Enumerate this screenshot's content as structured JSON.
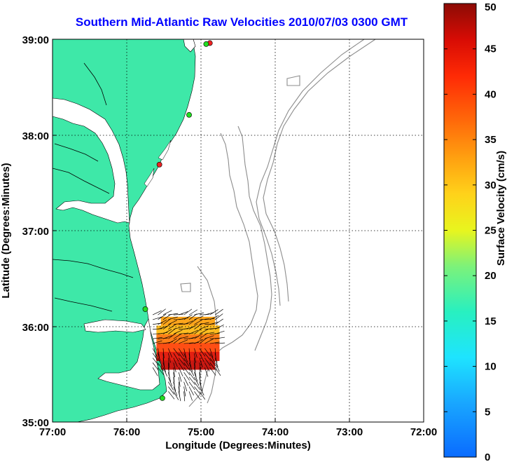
{
  "title": "Southern Mid-Atlantic Raw Velocities 2010/07/03 0300 GMT",
  "axes": {
    "xlabel": "Longitude (Degrees:Minutes)",
    "ylabel": "Latitude (Degrees:Minutes)",
    "xticks": [
      "77:00",
      "76:00",
      "75:00",
      "74:00",
      "73:00",
      "72:00"
    ],
    "yticks": [
      "39:00",
      "38:00",
      "37:00",
      "36:00",
      "35:00"
    ],
    "grid": true
  },
  "colorbar": {
    "label": "Surface Velocity (cm/s)",
    "ticks": [
      "50",
      "45",
      "40",
      "35",
      "30",
      "25",
      "20",
      "15",
      "10",
      "5",
      "0"
    ],
    "range": [
      0,
      50
    ]
  },
  "colors": {
    "land": "#3ee8a8",
    "title": "#0000ff",
    "bathymetry": "#8c8c8c",
    "station_green": "#22dd22",
    "station_red": "#ee2222"
  },
  "stations": [
    {
      "lon": -74.88,
      "lat": 38.96,
      "status": "red"
    },
    {
      "lon": -74.93,
      "lat": 38.95,
      "status": "green"
    },
    {
      "lon": -75.16,
      "lat": 38.21,
      "status": "green"
    },
    {
      "lon": -75.56,
      "lat": 37.69,
      "status": "red"
    },
    {
      "lon": -75.75,
      "lat": 36.18,
      "status": "green"
    },
    {
      "lon": -75.52,
      "lat": 35.25,
      "status": "green"
    }
  ],
  "chart_data": {
    "type": "heatmap",
    "xlim": [
      -77.0,
      -72.0
    ],
    "ylim": [
      35.0,
      39.0
    ],
    "color_range": [
      0,
      50
    ],
    "field_region": {
      "lon": [
        -75.6,
        -74.75
      ],
      "lat": [
        35.55,
        36.1
      ]
    },
    "speed_profile": [
      {
        "lat": 36.05,
        "speed": 33
      },
      {
        "lat": 35.95,
        "speed": 31
      },
      {
        "lat": 35.85,
        "speed": 36
      },
      {
        "lat": 35.75,
        "speed": 40
      },
      {
        "lat": 35.65,
        "speed": 45
      },
      {
        "lat": 35.58,
        "speed": 47
      }
    ]
  }
}
